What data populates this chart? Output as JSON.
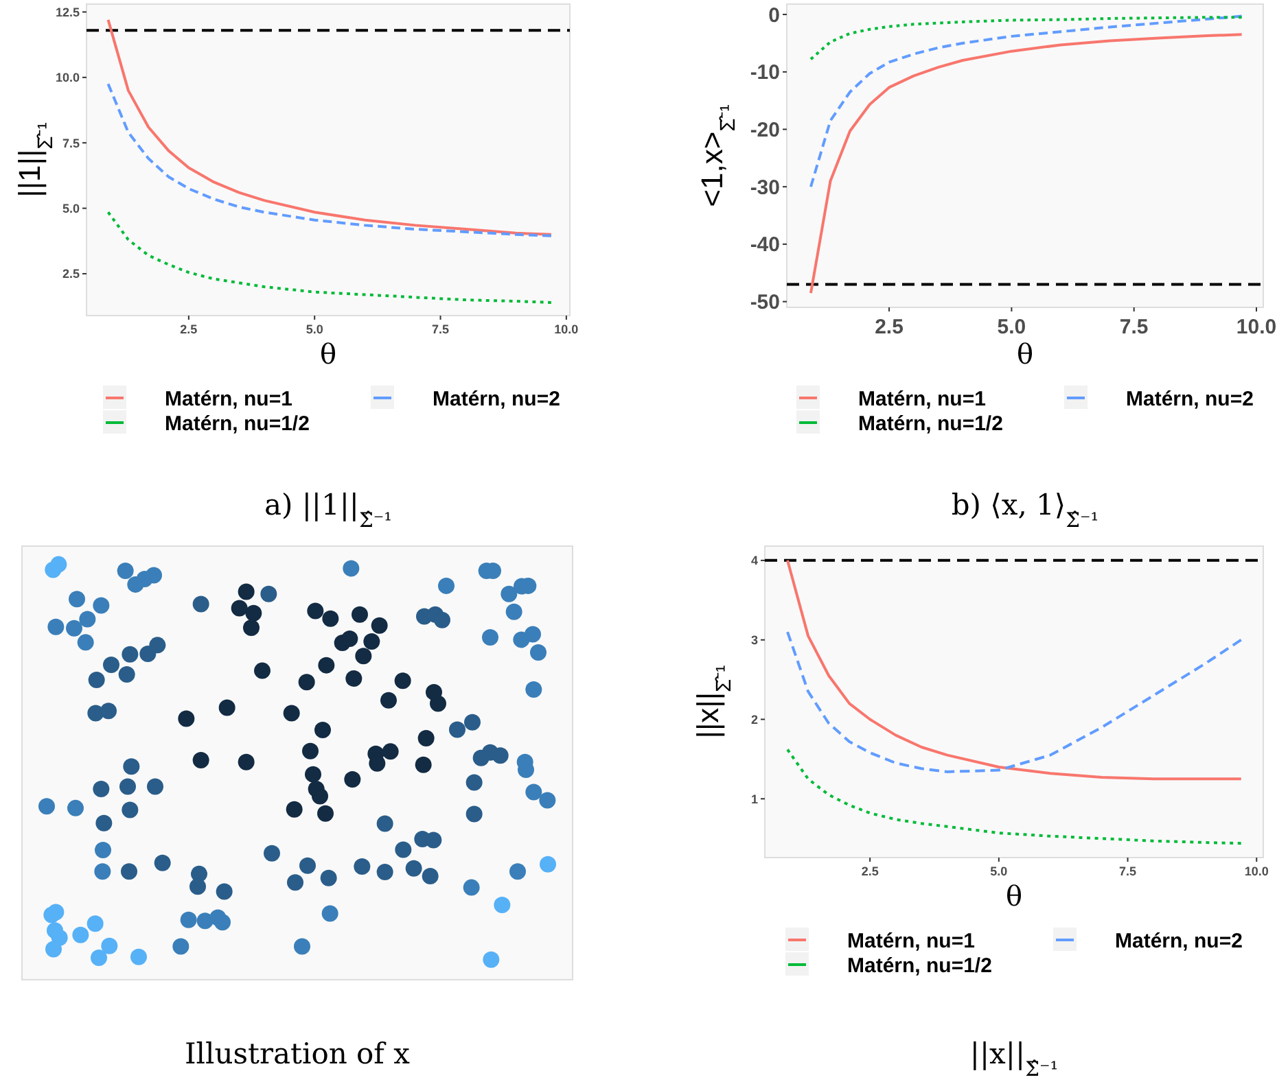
{
  "chart_data": [
    {
      "type": "line",
      "title": "a) ||1||$_{Σ̂⁻¹}$",
      "xlabel": "θ",
      "ylabel": "||1||$_{Σ̂⁻¹}$",
      "xlim": [
        0.47,
        10.07
      ],
      "ylim": [
        0.9,
        12.8
      ],
      "xticks": [
        {
          "value": 2.5,
          "label": "2.5"
        },
        {
          "value": 5,
          "label": "5.0"
        },
        {
          "value": 7.5,
          "label": "7.5"
        },
        {
          "value": 10,
          "label": "10.0"
        }
      ],
      "yticks": [
        {
          "value": 2.5,
          "label": "2.5"
        },
        {
          "value": 5,
          "label": "5.0"
        },
        {
          "value": 7.5,
          "label": "7.5"
        },
        {
          "value": 10,
          "label": "10.0"
        },
        {
          "value": 12.5,
          "label": "12.5"
        }
      ],
      "legend": "bottom",
      "x": [
        0.9,
        1.3,
        1.7,
        2.1,
        2.5,
        3,
        3.5,
        4,
        5,
        6,
        7,
        8,
        9,
        9.7
      ],
      "series": [
        {
          "name": "Matérn, nu=1",
          "color": "#f8766d",
          "line_style": "solid",
          "values": [
            12.2,
            9.5,
            8.1,
            7.2,
            6.55,
            6.0,
            5.6,
            5.3,
            4.85,
            4.55,
            4.35,
            4.2,
            4.05,
            4.0
          ]
        },
        {
          "name": "Matérn, nu=2",
          "color": "#619cff",
          "line_style": "dashed",
          "values": [
            9.75,
            7.9,
            6.9,
            6.2,
            5.75,
            5.35,
            5.05,
            4.85,
            4.55,
            4.35,
            4.2,
            4.1,
            4.0,
            3.95
          ]
        },
        {
          "name": "Matérn, nu=1/2",
          "color": "#00ba38",
          "line_style": "dotted",
          "values": [
            4.85,
            3.8,
            3.2,
            2.85,
            2.55,
            2.3,
            2.15,
            2.0,
            1.8,
            1.7,
            1.6,
            1.5,
            1.45,
            1.4
          ]
        }
      ],
      "ref_lines": [
        {
          "axis": "y",
          "value": 11.8,
          "color": "#000000",
          "line_style": "dashed"
        }
      ]
    },
    {
      "type": "line",
      "title": "b) ⟨x, 1⟩$_{Σ̂⁻¹}$",
      "xlabel": "θ",
      "ylabel": "<1,x>$_{Σ̂⁻¹}$",
      "xlim": [
        0.41,
        10.14
      ],
      "ylim": [
        -51,
        1.8
      ],
      "xticks": [
        {
          "value": 2.5,
          "label": "2.5"
        },
        {
          "value": 5,
          "label": "5.0"
        },
        {
          "value": 7.5,
          "label": "7.5"
        },
        {
          "value": 10,
          "label": "10.0"
        }
      ],
      "yticks": [
        0,
        -10,
        -20,
        -30,
        -40,
        -50
      ],
      "legend": "bottom",
      "x": [
        0.9,
        1.3,
        1.7,
        2.1,
        2.5,
        3,
        3.5,
        4,
        5,
        6,
        7,
        8,
        9,
        9.7
      ],
      "series": [
        {
          "name": "Matérn, nu=1",
          "color": "#f8766d",
          "line_style": "solid",
          "values": [
            -48.5,
            -29,
            -20.3,
            -15.7,
            -12.7,
            -10.7,
            -9.2,
            -8.0,
            -6.4,
            -5.3,
            -4.6,
            -4.1,
            -3.7,
            -3.5
          ]
        },
        {
          "name": "Matérn, nu=2",
          "color": "#619cff",
          "line_style": "dashed",
          "values": [
            -30,
            -18.5,
            -13.5,
            -10.3,
            -8.3,
            -6.9,
            -5.8,
            -5.0,
            -3.8,
            -3.0,
            -2.2,
            -1.5,
            -0.8,
            -0.3
          ]
        },
        {
          "name": "Matérn, nu=1/2",
          "color": "#00ba38",
          "line_style": "dotted",
          "values": [
            -7.8,
            -4.8,
            -3.3,
            -2.6,
            -2.1,
            -1.7,
            -1.5,
            -1.3,
            -1.0,
            -0.9,
            -0.7,
            -0.6,
            -0.5,
            -0.5
          ]
        }
      ],
      "ref_lines": [
        {
          "axis": "y",
          "value": -47,
          "color": "#000000",
          "line_style": "dashed"
        }
      ]
    },
    {
      "type": "other",
      "title": "Illustration of x"
    },
    {
      "type": "line",
      "title": "||x||$_{Σ̂⁻¹}$",
      "xlabel": "θ",
      "ylabel": "||x||$_{Σ̂⁻¹}$",
      "xlim": [
        0.46,
        10.13
      ],
      "ylim": [
        0.26,
        4.18
      ],
      "xticks": [
        {
          "value": 2.5,
          "label": "2.5"
        },
        {
          "value": 5,
          "label": "5.0"
        },
        {
          "value": 7.5,
          "label": "7.5"
        },
        {
          "value": 10,
          "label": "10.0"
        }
      ],
      "yticks": [
        1,
        2,
        3,
        4
      ],
      "legend": "bottom",
      "x": [
        0.9,
        1.3,
        1.7,
        2.1,
        2.5,
        3,
        3.5,
        4,
        5,
        6,
        7,
        8,
        9,
        9.7
      ],
      "series": [
        {
          "name": "Matérn, nu=1",
          "color": "#f8766d",
          "line_style": "solid",
          "values": [
            4.0,
            3.05,
            2.55,
            2.2,
            2.0,
            1.8,
            1.65,
            1.55,
            1.4,
            1.32,
            1.27,
            1.25,
            1.25,
            1.25
          ]
        },
        {
          "name": "Matérn, nu=2",
          "color": "#619cff",
          "line_style": "dashed",
          "values": [
            3.1,
            2.35,
            1.95,
            1.72,
            1.58,
            1.45,
            1.38,
            1.34,
            1.36,
            1.55,
            1.9,
            2.3,
            2.7,
            3.0
          ]
        },
        {
          "name": "Matérn, nu=1/2",
          "color": "#00ba38",
          "line_style": "dotted",
          "values": [
            1.62,
            1.25,
            1.05,
            0.92,
            0.82,
            0.74,
            0.69,
            0.65,
            0.57,
            0.53,
            0.5,
            0.47,
            0.45,
            0.44
          ]
        }
      ],
      "ref_lines": [
        {
          "axis": "y",
          "value": 4,
          "color": "#000000",
          "line_style": "dashed"
        }
      ]
    }
  ]
}
